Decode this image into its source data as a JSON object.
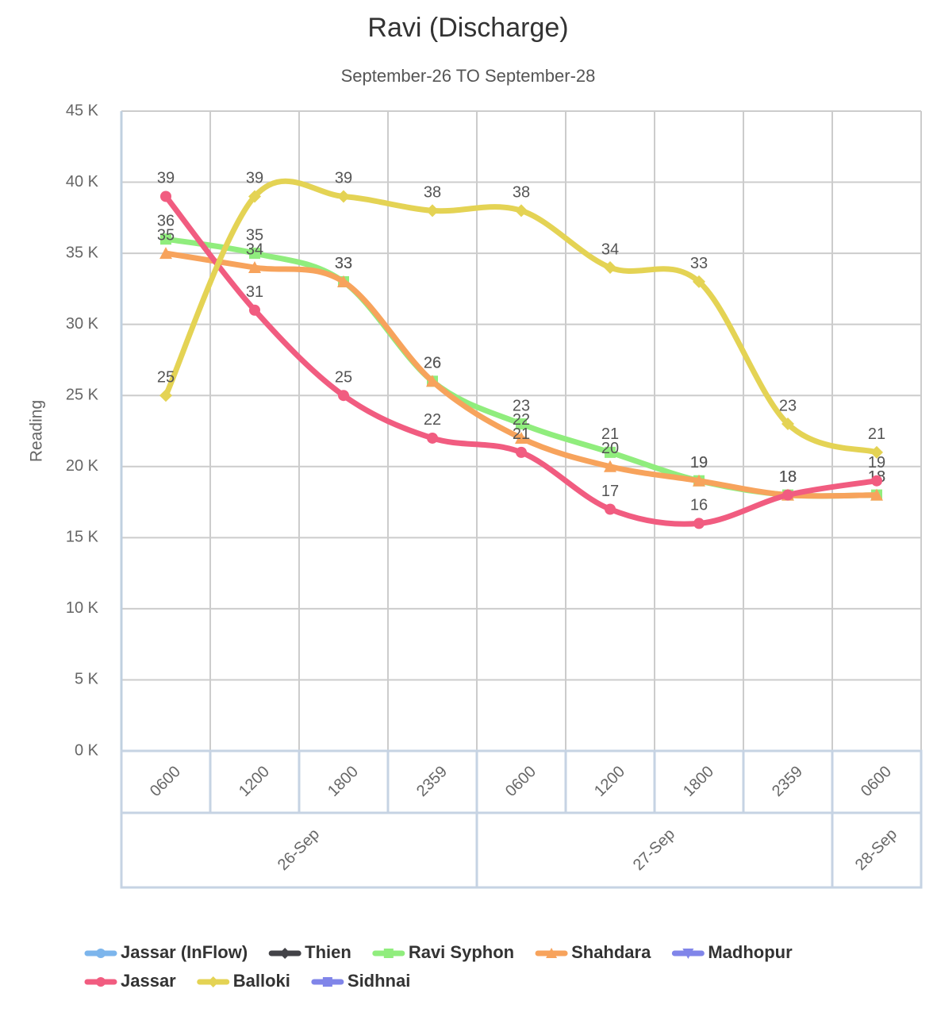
{
  "chart_data": {
    "type": "line",
    "title": "Ravi (Discharge)",
    "subtitle": "September-26 TO September-28",
    "y_label": "Reading",
    "categories": [
      "0600",
      "1200",
      "1800",
      "2359",
      "0600",
      "1200",
      "1800",
      "2359",
      "0600"
    ],
    "category_groups": [
      {
        "label": "26-Sep",
        "span": 4
      },
      {
        "label": "27-Sep",
        "span": 4
      },
      {
        "label": "28-Sep",
        "span": 1
      }
    ],
    "ylim": [
      0,
      45
    ],
    "yticks": [
      {
        "value": 0,
        "label": "0 K"
      },
      {
        "value": 5,
        "label": "5 K"
      },
      {
        "value": 10,
        "label": "10 K"
      },
      {
        "value": 15,
        "label": "15 K"
      },
      {
        "value": 20,
        "label": "20 K"
      },
      {
        "value": 25,
        "label": "25 K"
      },
      {
        "value": 30,
        "label": "30 K"
      },
      {
        "value": 35,
        "label": "35 K"
      },
      {
        "value": 40,
        "label": "40 K"
      },
      {
        "value": 45,
        "label": "45 K"
      }
    ],
    "grid": true,
    "smooth": true,
    "data_labels": true,
    "legend": "bottom",
    "series": [
      {
        "name": "Jassar (InFlow)",
        "color": "#7cb5ec",
        "marker": "circle",
        "values": [
          null,
          null,
          null,
          null,
          null,
          null,
          null,
          null,
          null
        ]
      },
      {
        "name": "Thien",
        "color": "#434348",
        "marker": "diamond",
        "values": [
          null,
          null,
          null,
          null,
          null,
          null,
          null,
          null,
          null
        ]
      },
      {
        "name": "Ravi Syphon",
        "color": "#90ed7d",
        "marker": "square",
        "values": [
          36,
          35,
          33,
          26,
          23,
          21,
          19,
          18,
          18
        ]
      },
      {
        "name": "Shahdara",
        "color": "#f7a35c",
        "marker": "triangle",
        "values": [
          35,
          34,
          33,
          26,
          22,
          20,
          19,
          18,
          18
        ]
      },
      {
        "name": "Madhopur",
        "color": "#8085e9",
        "marker": "triangle-down",
        "values": [
          null,
          null,
          null,
          null,
          null,
          null,
          null,
          null,
          null
        ]
      },
      {
        "name": "Jassar",
        "color": "#f15c80",
        "marker": "circle",
        "values": [
          39,
          31,
          25,
          22,
          21,
          17,
          16,
          18,
          19
        ]
      },
      {
        "name": "Balloki",
        "color": "#e4d354",
        "marker": "diamond",
        "values": [
          25,
          39,
          39,
          38,
          38,
          34,
          33,
          23,
          21
        ]
      },
      {
        "name": "Sidhnai",
        "color": "#8085e9",
        "marker": "square",
        "values": [
          null,
          null,
          null,
          null,
          null,
          null,
          null,
          null,
          null
        ]
      }
    ]
  }
}
